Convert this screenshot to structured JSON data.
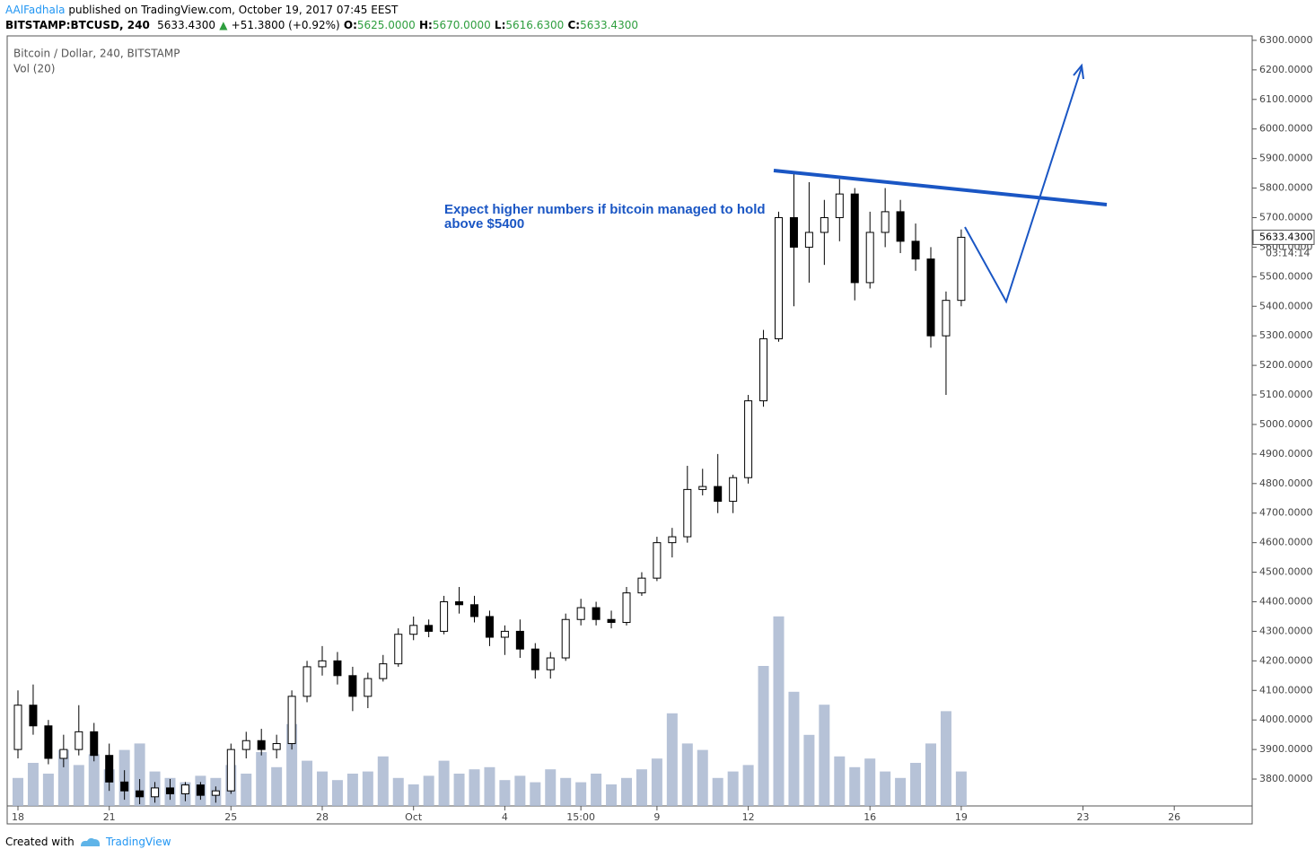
{
  "header": {
    "author": "AAlFadhala",
    "published": "published on TradingView.com, October 19, 2017 07:45 EEST",
    "symbol": "BITSTAMP:BTCUSD, 240",
    "last": "5633.4300",
    "change": "+51.3800 (+0.92%)",
    "ohlc": [
      {
        "label": "O:",
        "value": "5625.0000"
      },
      {
        "label": "H:",
        "value": "5670.0000"
      },
      {
        "label": "L:",
        "value": "5616.6300"
      },
      {
        "label": "C:",
        "value": "5633.4300"
      }
    ]
  },
  "footer": {
    "created": "Created with",
    "brand": "TradingView"
  },
  "chart_data": {
    "type": "candlestick",
    "title": "Bitcoin / Dollar, 240, BITSTAMP",
    "volume_label": "Vol (20)",
    "annotation": "Expect higher numbers if bitcoin managed to hold above $5400",
    "last_price": {
      "value": 5633.43,
      "label": "5633.4300"
    },
    "countdown": "03:14:14",
    "categories": [
      "18",
      null,
      null,
      null,
      null,
      null,
      "21",
      null,
      null,
      null,
      null,
      null,
      null,
      null,
      "25",
      null,
      null,
      null,
      null,
      null,
      "28",
      null,
      null,
      null,
      null,
      null,
      "Oct",
      null,
      null,
      null,
      null,
      null,
      "4",
      null,
      null,
      null,
      null,
      "15:00",
      null,
      null,
      null,
      null,
      "9",
      null,
      null,
      null,
      null,
      null,
      "12",
      null,
      null,
      null,
      null,
      null,
      null,
      null,
      "16",
      null,
      null,
      null,
      null,
      null,
      "19",
      null,
      null,
      null,
      null,
      null,
      null,
      null,
      "23",
      null,
      null,
      null,
      null,
      null,
      "26",
      null,
      null,
      null,
      null
    ],
    "open": [
      3900,
      4050,
      3980,
      3870,
      3900,
      3960,
      3880,
      3790,
      3760,
      3740,
      3770,
      3750,
      3780,
      3745,
      3760,
      3900,
      3930,
      3900,
      3920,
      4080,
      4180,
      4200,
      4150,
      4080,
      4140,
      4190,
      4290,
      4320,
      4300,
      4400,
      4390,
      4350,
      4280,
      4300,
      4240,
      4170,
      4210,
      4340,
      4380,
      4340,
      4330,
      4430,
      4480,
      4600,
      4620,
      4780,
      4790,
      4740,
      4820,
      5080,
      5290,
      5700,
      5600,
      5650,
      5700,
      5780,
      5480,
      5650,
      5720,
      5620,
      5560,
      5300,
      5420,
      null,
      null,
      null,
      null,
      null,
      null,
      null,
      null,
      null,
      null,
      null,
      null,
      null,
      null,
      null,
      null,
      null,
      null
    ],
    "high": [
      4100,
      4120,
      4000,
      3950,
      4050,
      3990,
      3920,
      3830,
      3800,
      3790,
      3800,
      3790,
      3790,
      3775,
      3920,
      3960,
      3970,
      3950,
      4100,
      4200,
      4250,
      4230,
      4180,
      4160,
      4220,
      4310,
      4350,
      4340,
      4420,
      4450,
      4420,
      4370,
      4320,
      4340,
      4260,
      4230,
      4360,
      4410,
      4400,
      4370,
      4450,
      4500,
      4620,
      4650,
      4860,
      4850,
      4900,
      4830,
      5100,
      5320,
      5720,
      5850,
      5820,
      5760,
      5830,
      5800,
      5720,
      5800,
      5760,
      5680,
      5600,
      5450,
      5660,
      null,
      null,
      null,
      null,
      null,
      null,
      null,
      null,
      null,
      null,
      null,
      null,
      null,
      null,
      null,
      null,
      null,
      null
    ],
    "low": [
      3870,
      3950,
      3850,
      3840,
      3880,
      3860,
      3760,
      3730,
      3715,
      3720,
      3730,
      3725,
      3730,
      3720,
      3750,
      3870,
      3880,
      3870,
      3900,
      4060,
      4150,
      4120,
      4030,
      4040,
      4130,
      4180,
      4270,
      4280,
      4290,
      4360,
      4330,
      4250,
      4220,
      4210,
      4140,
      4140,
      4200,
      4320,
      4320,
      4310,
      4320,
      4420,
      4470,
      4550,
      4600,
      4760,
      4700,
      4700,
      4800,
      5060,
      5280,
      5400,
      5480,
      5540,
      5620,
      5420,
      5460,
      5600,
      5580,
      5520,
      5260,
      5100,
      5400,
      null,
      null,
      null,
      null,
      null,
      null,
      null,
      null,
      null,
      null,
      null,
      null,
      null,
      null,
      null,
      null,
      null,
      null
    ],
    "close": [
      4050,
      3980,
      3870,
      3900,
      3960,
      3880,
      3790,
      3760,
      3740,
      3770,
      3750,
      3780,
      3745,
      3760,
      3900,
      3930,
      3900,
      3920,
      4080,
      4180,
      4200,
      4150,
      4080,
      4140,
      4190,
      4290,
      4320,
      4300,
      4400,
      4390,
      4350,
      4280,
      4300,
      4240,
      4170,
      4210,
      4340,
      4380,
      4340,
      4330,
      4430,
      4480,
      4600,
      4620,
      4780,
      4790,
      4740,
      4820,
      5080,
      5290,
      5700,
      5600,
      5650,
      5700,
      5780,
      5480,
      5650,
      5720,
      5620,
      5560,
      5300,
      5420,
      5633.43,
      null,
      null,
      null,
      null,
      null,
      null,
      null,
      null,
      null,
      null,
      null,
      null,
      null,
      null,
      null,
      null,
      null,
      null
    ],
    "volume": [
      1300,
      2000,
      1500,
      2600,
      1900,
      2400,
      1700,
      2600,
      2900,
      1600,
      1300,
      1100,
      1400,
      1300,
      1900,
      1500,
      2500,
      1800,
      3800,
      2100,
      1600,
      1200,
      1500,
      1600,
      2300,
      1300,
      1000,
      1400,
      2100,
      1500,
      1700,
      1800,
      1200,
      1400,
      1100,
      1700,
      1300,
      1100,
      1500,
      1000,
      1300,
      1700,
      2200,
      4300,
      2900,
      2600,
      1300,
      1600,
      1900,
      6500,
      8800,
      5300,
      3300,
      4700,
      2300,
      1800,
      2200,
      1600,
      1300,
      2000,
      2900,
      4400,
      1600,
      null,
      null,
      null,
      null,
      null,
      null,
      null,
      null,
      null,
      null,
      null,
      null,
      null,
      null,
      null,
      null,
      null,
      null
    ],
    "up_color": "#ffffff",
    "down_color": "#000000",
    "volume_color": "#a9b7d0",
    "vlim": [
      0,
      10000
    ],
    "ylim": [
      3709,
      6315
    ],
    "yticks": [
      {
        "value": 3800,
        "label": "3800.0000"
      },
      {
        "value": 3900,
        "label": "3900.0000"
      },
      {
        "value": 4000,
        "label": "4000.0000"
      },
      {
        "value": 4100,
        "label": "4100.0000"
      },
      {
        "value": 4200,
        "label": "4200.0000"
      },
      {
        "value": 4300,
        "label": "4300.0000"
      },
      {
        "value": 4400,
        "label": "4400.0000"
      },
      {
        "value": 4500,
        "label": "4500.0000"
      },
      {
        "value": 4600,
        "label": "4600.0000"
      },
      {
        "value": 4700,
        "label": "4700.0000"
      },
      {
        "value": 4800,
        "label": "4800.0000"
      },
      {
        "value": 4900,
        "label": "4900.0000"
      },
      {
        "value": 5000,
        "label": "5000.0000"
      },
      {
        "value": 5100,
        "label": "5100.0000"
      },
      {
        "value": 5200,
        "label": "5200.0000"
      },
      {
        "value": 5300,
        "label": "5300.0000"
      },
      {
        "value": 5400,
        "label": "5400.0000"
      },
      {
        "value": 5500,
        "label": "5500.0000"
      },
      {
        "value": 5600,
        "label": "5600.0000"
      },
      {
        "value": 5700,
        "label": "5700.0000"
      },
      {
        "value": 5800,
        "label": "5800.0000"
      },
      {
        "value": 5900,
        "label": "5900.0000"
      },
      {
        "value": 6000,
        "label": "6000.0000"
      },
      {
        "value": 6100,
        "label": "6100.0000"
      },
      {
        "value": 6200,
        "label": "6200.0000"
      },
      {
        "value": 6300,
        "label": "6300.0000"
      }
    ]
  }
}
